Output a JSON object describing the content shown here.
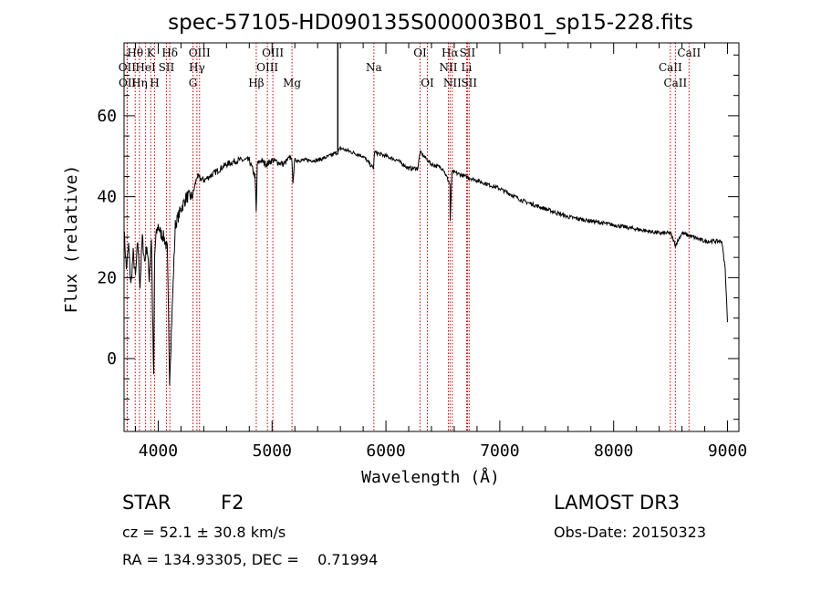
{
  "chart_data": {
    "type": "line",
    "title": "spec-57105-HD090135S000003B01_sp15-228.fits",
    "xlabel": "Wavelength (Å)",
    "ylabel": "Flux (relative)",
    "xlim": [
      3700,
      9100
    ],
    "ylim": [
      -18,
      78
    ],
    "xticks": [
      4000,
      5000,
      6000,
      7000,
      8000,
      9000
    ],
    "xtick_labels": [
      "4000",
      "5000",
      "6000",
      "7000",
      "8000",
      "9000"
    ],
    "yticks": [
      0,
      20,
      40,
      60
    ],
    "ytick_labels": [
      "0",
      "20",
      "40",
      "60"
    ],
    "grid": false,
    "series": [
      {
        "name": "spectrum",
        "x": [
          3700,
          3720,
          3740,
          3760,
          3780,
          3800,
          3820,
          3840,
          3860,
          3880,
          3900,
          3920,
          3940,
          3950,
          3960,
          3968,
          3980,
          4000,
          4020,
          4050,
          4080,
          4100,
          4150,
          4200,
          4250,
          4300,
          4340,
          4400,
          4500,
          4600,
          4700,
          4800,
          4850,
          4861,
          4870,
          4900,
          4950,
          5000,
          5100,
          5170,
          5183,
          5200,
          5300,
          5400,
          5500,
          5577,
          5600,
          5700,
          5800,
          5890,
          5900,
          6000,
          6100,
          6200,
          6280,
          6300,
          6400,
          6500,
          6563,
          6564,
          6580,
          6600,
          6700,
          6800,
          6900,
          7000,
          7200,
          7400,
          7600,
          7800,
          8000,
          8200,
          8400,
          8500,
          8542,
          8600,
          8700,
          8800,
          8900,
          8950,
          8980,
          9000
        ],
        "y": [
          32,
          22,
          28,
          18,
          26,
          20,
          29,
          18,
          30,
          24,
          28,
          20,
          30,
          12,
          -5,
          25,
          30,
          33,
          31,
          30,
          27,
          -5,
          33,
          37,
          40,
          40,
          45,
          44,
          46,
          48,
          49,
          49,
          45,
          36,
          48,
          49,
          48,
          49,
          48,
          50,
          44,
          49,
          49,
          49,
          50,
          51,
          52,
          51,
          50,
          47,
          51,
          50,
          49,
          47,
          47,
          51,
          48,
          47,
          43,
          34,
          46,
          46,
          45,
          44,
          43,
          42,
          39,
          37,
          35,
          34,
          33,
          32,
          31,
          31,
          28,
          31,
          30,
          29,
          29,
          29,
          22,
          9
        ]
      }
    ],
    "spectral_lines": [
      {
        "label": "Hθ",
        "x": 3798,
        "row": 1
      },
      {
        "label": "OII",
        "x": 3727,
        "row": 2
      },
      {
        "label": "OII",
        "x": 3729,
        "row": 3
      },
      {
        "label": "K",
        "x": 3934,
        "row": 1
      },
      {
        "label": "HeI",
        "x": 3889,
        "row": 2
      },
      {
        "label": "Hη",
        "x": 3835,
        "row": 3
      },
      {
        "label": "SII",
        "x": 4072,
        "row": 2
      },
      {
        "label": "H",
        "x": 3968,
        "row": 3
      },
      {
        "label": "Hδ",
        "x": 4102,
        "row": 1
      },
      {
        "label": "OIII",
        "x": 4363,
        "row": 1
      },
      {
        "label": "Hγ",
        "x": 4340,
        "row": 2
      },
      {
        "label": "G",
        "x": 4305,
        "row": 3
      },
      {
        "label": "OIII",
        "x": 5007,
        "row": 1
      },
      {
        "label": "OIII",
        "x": 4959,
        "row": 2
      },
      {
        "label": "Hβ",
        "x": 4861,
        "row": 3
      },
      {
        "label": "Mg",
        "x": 5175,
        "row": 3
      },
      {
        "label": "Na",
        "x": 5894,
        "row": 2
      },
      {
        "label": "OI",
        "x": 6300,
        "row": 1
      },
      {
        "label": "OI",
        "x": 6364,
        "row": 3
      },
      {
        "label": "Hα",
        "x": 6563,
        "row": 1
      },
      {
        "label": "NII",
        "x": 6548,
        "row": 2
      },
      {
        "label": "NII",
        "x": 6583,
        "row": 3
      },
      {
        "label": "SII",
        "x": 6716,
        "row": 1
      },
      {
        "label": "Li",
        "x": 6708,
        "row": 2
      },
      {
        "label": "SII",
        "x": 6731,
        "row": 3
      },
      {
        "label": "CaII",
        "x": 8662,
        "row": 1
      },
      {
        "label": "CaII",
        "x": 8498,
        "row": 2
      },
      {
        "label": "CaII",
        "x": 8542,
        "row": 3
      }
    ]
  },
  "info": {
    "class_label": "STAR",
    "subclass": "F2",
    "survey": "LAMOST DR3",
    "redshift": "cz = 52.1 ± 30.8 km/s",
    "obs_date": "Obs-Date: 20150323",
    "coords": "RA = 134.93305, DEC =    0.71994"
  },
  "colors": {
    "line_marker": "#cc0000",
    "spectrum": "#000000",
    "axes": "#000000"
  }
}
